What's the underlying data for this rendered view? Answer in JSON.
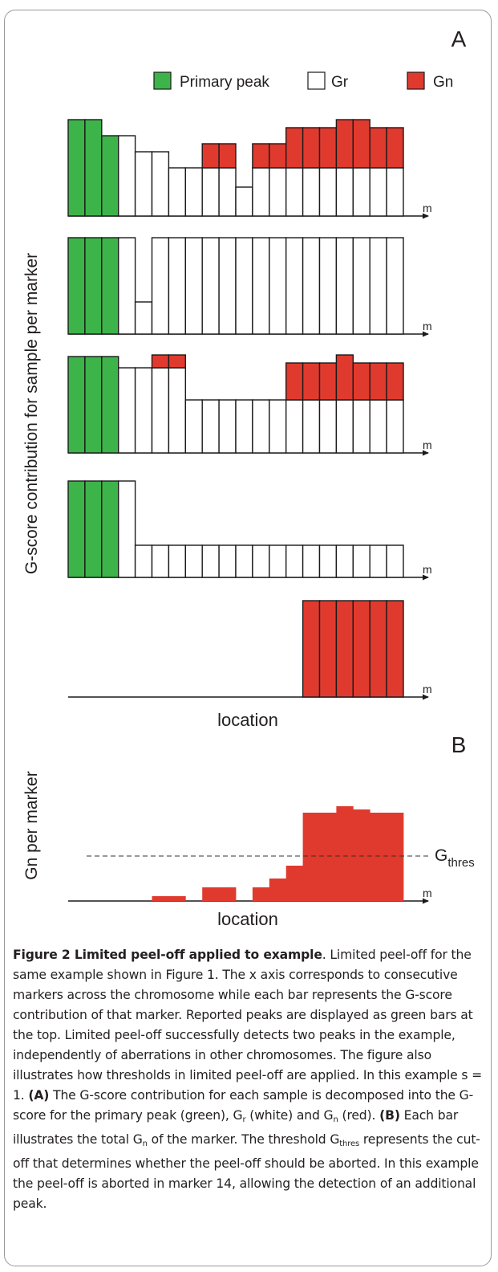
{
  "panel_a_label": "A",
  "panel_b_label": "B",
  "legend": [
    {
      "label": "Primary peak",
      "color": "#3db449"
    },
    {
      "label": "Gr",
      "color": "#ffffff"
    },
    {
      "label": "Gn",
      "color": "#e03a2e"
    }
  ],
  "panel_a_ylabel": "G-score contribution for sample per marker",
  "panel_a_xlabel": "location",
  "panel_b_ylabel": "Gn per marker",
  "panel_b_xlabel": "location",
  "axis_end_label": "m",
  "threshold_label_main": "G",
  "threshold_label_sub": "thres",
  "colors": {
    "green": "#3db449",
    "red": "#e03a2e",
    "white": "#ffffff",
    "stroke": "#1a1a1a"
  },
  "chart_data": [
    {
      "type": "bar",
      "stacked": true,
      "markers": 20,
      "rows": [
        {
          "green": [
            6,
            6,
            5,
            0,
            0,
            0,
            0,
            0,
            0,
            0,
            0,
            0,
            0,
            0,
            0,
            0,
            0,
            0,
            0,
            0
          ],
          "white": [
            0,
            0,
            0,
            5,
            4,
            4,
            3,
            3,
            3,
            3,
            1.8,
            3,
            3,
            3,
            3,
            3,
            3,
            3,
            3,
            3
          ],
          "red": [
            0,
            0,
            0,
            0,
            0,
            0,
            0,
            0,
            1.5,
            1.5,
            0,
            1.5,
            1.5,
            2.5,
            2.5,
            2.5,
            3,
            3,
            2.5,
            2.5
          ]
        },
        {
          "green": [
            6,
            6,
            6,
            0,
            0,
            0,
            0,
            0,
            0,
            0,
            0,
            0,
            0,
            0,
            0,
            0,
            0,
            0,
            0,
            0
          ],
          "white": [
            0,
            0,
            0,
            6,
            2,
            6,
            6,
            6,
            6,
            6,
            6,
            6,
            6,
            6,
            6,
            6,
            6,
            6,
            6,
            6
          ],
          "red": [
            0,
            0,
            0,
            0,
            0,
            0,
            0,
            0,
            0,
            0,
            0,
            0,
            0,
            0,
            0,
            0,
            0,
            0,
            0,
            0
          ]
        },
        {
          "green": [
            6,
            6,
            6,
            0,
            0,
            0,
            0,
            0,
            0,
            0,
            0,
            0,
            0,
            0,
            0,
            0,
            0,
            0,
            0,
            0
          ],
          "white": [
            0,
            0,
            0,
            5.3,
            5.3,
            5.3,
            5.3,
            3.3,
            3.3,
            3.3,
            3.3,
            3.3,
            3.3,
            3.3,
            3.3,
            3.3,
            3.3,
            3.3,
            3.3,
            3.3
          ],
          "red": [
            0,
            0,
            0,
            0,
            0,
            0.8,
            0.8,
            0,
            0,
            0,
            0,
            0,
            0,
            2.3,
            2.3,
            2.3,
            2.8,
            2.3,
            2.3,
            2.3
          ]
        },
        {
          "green": [
            6,
            6,
            6,
            0,
            0,
            0,
            0,
            0,
            0,
            0,
            0,
            0,
            0,
            0,
            0,
            0,
            0,
            0,
            0,
            0
          ],
          "white": [
            0,
            0,
            0,
            6,
            2,
            2,
            2,
            2,
            2,
            2,
            2,
            2,
            2,
            2,
            2,
            2,
            2,
            2,
            2,
            2
          ],
          "red": [
            0,
            0,
            0,
            0,
            0,
            0,
            0,
            0,
            0,
            0,
            0,
            0,
            0,
            0,
            0,
            0,
            0,
            0,
            0,
            0
          ]
        },
        {
          "green": [
            0,
            0,
            0,
            0,
            0,
            0,
            0,
            0,
            0,
            0,
            0,
            0,
            0,
            0,
            0,
            0,
            0,
            0,
            0,
            0
          ],
          "white": [
            0,
            0,
            0,
            0,
            0,
            0,
            0,
            0,
            0,
            0,
            0,
            0,
            0,
            0,
            0,
            0,
            0,
            0,
            0,
            0
          ],
          "red": [
            0,
            0,
            0,
            0,
            0,
            0,
            0,
            0,
            0,
            0,
            0,
            0,
            0,
            0,
            6,
            6,
            6,
            6,
            6,
            6
          ]
        }
      ],
      "xlabel": "location",
      "ylabel": "G-score contribution for sample per marker"
    },
    {
      "type": "bar",
      "markers": 20,
      "values": [
        0,
        0,
        0,
        0,
        0,
        0.3,
        0.3,
        0,
        0.85,
        0.85,
        0,
        0.85,
        1.4,
        2.2,
        5.5,
        5.5,
        5.9,
        5.7,
        5.5,
        5.5
      ],
      "threshold": 2.8,
      "xlabel": "location",
      "ylabel": "Gn per marker"
    }
  ],
  "caption": {
    "title": "Figure 2 Limited peel-off applied to example",
    "p1": ". Limited peel-off for the same example shown in Figure 1. The x axis corresponds to consecutive markers across the chromosome while each bar represents the G-score contribution of that marker. Reported peaks are displayed as green bars at the top. Limited peel-off successfully detects two peaks in the example, independently of aberrations in other chromosomes. The figure also illustrates how thresholds in limited peel-off are applied. In this example s = 1. ",
    "a_label": "(A)",
    "p2": " The G-score contribution for each sample is decomposed into the G-score for the primary peak (green), G",
    "sub_r": "r",
    "p3": " (white) and G",
    "sub_n1": "n",
    "p4": " (red). ",
    "b_label": "(B)",
    "p5": " Each bar illustrates the total G",
    "sub_n2": "n",
    "p6": " of the marker. The threshold G",
    "sub_thres": "thres",
    "p7": " represents the cut-off that determines whether the peel-off should be aborted. In this example the peel-off is aborted in marker 14, allowing the detection of an additional peak."
  }
}
